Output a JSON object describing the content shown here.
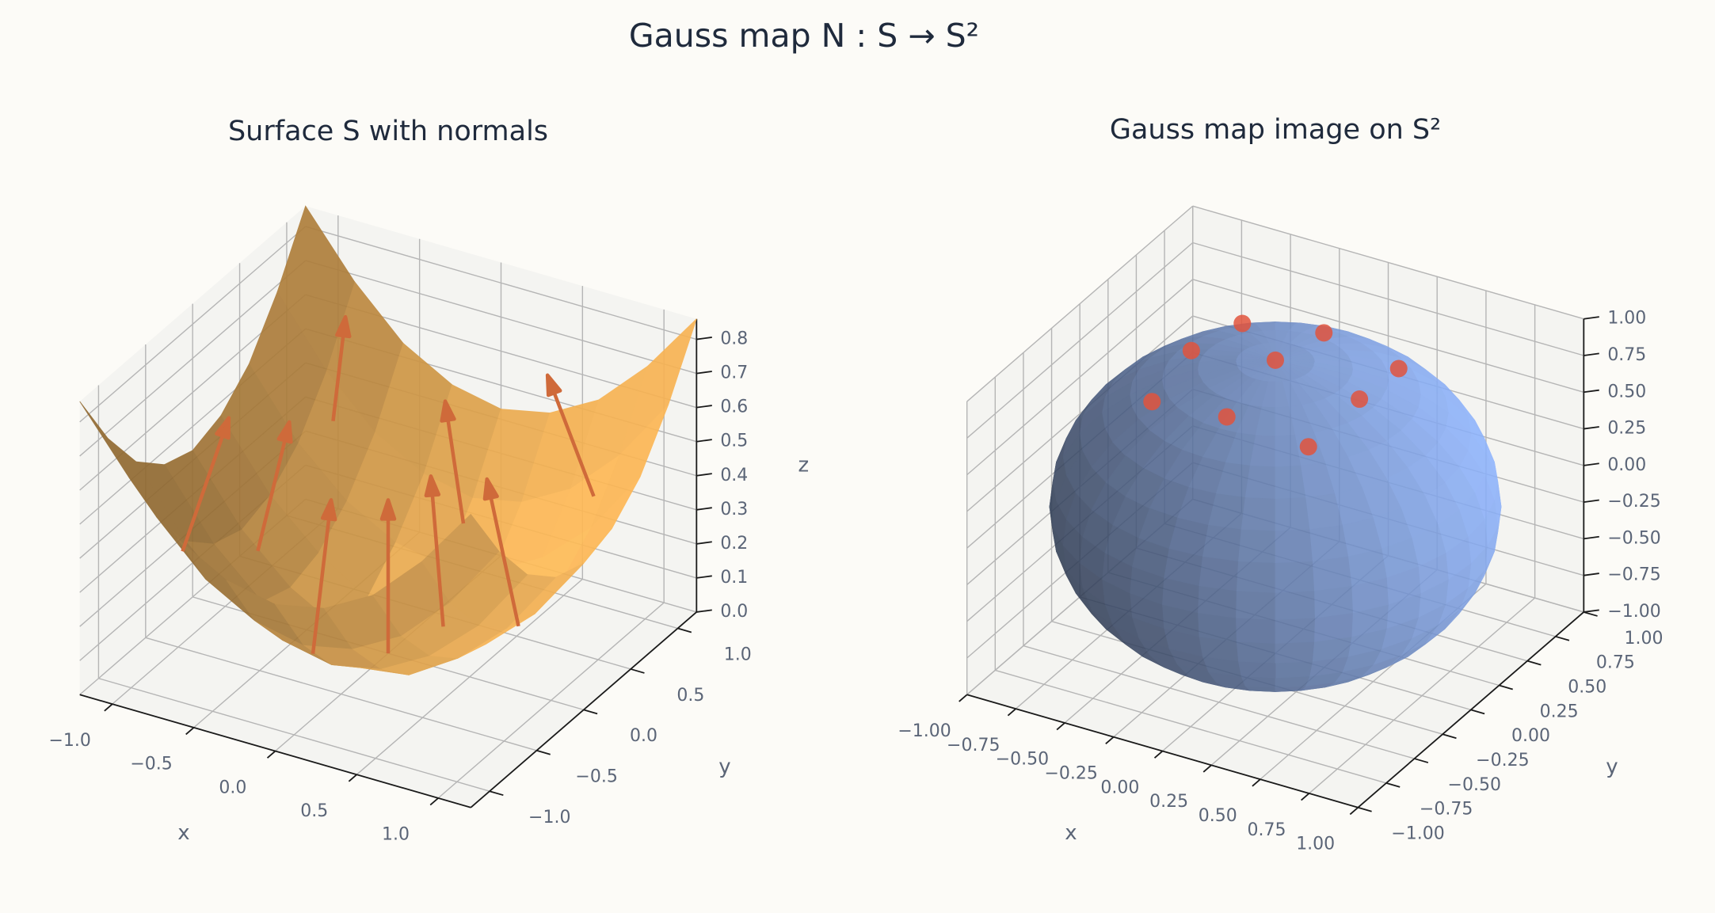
{
  "title": "Gauss map N : S → S²",
  "chart_data": [
    {
      "type": "surface3d",
      "title": "Surface S with normals",
      "xlabel": "x",
      "ylabel": "y",
      "zlabel": "z",
      "x": [
        -1.2,
        -0.9,
        -0.6,
        -0.3,
        0,
        0.3,
        0.6,
        0.9,
        1.2
      ],
      "y": [
        -1.2,
        -0.9,
        -0.6,
        -0.3,
        0,
        0.3,
        0.6,
        0.9,
        1.2
      ],
      "z": [
        [
          0.86,
          0.68,
          0.54,
          0.46,
          0.43,
          0.46,
          0.54,
          0.68,
          0.86
        ],
        [
          0.68,
          0.49,
          0.35,
          0.27,
          0.24,
          0.27,
          0.35,
          0.49,
          0.68
        ],
        [
          0.54,
          0.35,
          0.22,
          0.14,
          0.11,
          0.14,
          0.22,
          0.35,
          0.54
        ],
        [
          0.46,
          0.27,
          0.14,
          0.05,
          0.03,
          0.05,
          0.14,
          0.27,
          0.46
        ],
        [
          0.43,
          0.24,
          0.11,
          0.03,
          0,
          0.03,
          0.11,
          0.24,
          0.43
        ],
        [
          0.46,
          0.27,
          0.14,
          0.05,
          0.03,
          0.05,
          0.14,
          0.27,
          0.46
        ],
        [
          0.54,
          0.35,
          0.22,
          0.14,
          0.11,
          0.14,
          0.22,
          0.35,
          0.54
        ],
        [
          0.68,
          0.49,
          0.35,
          0.27,
          0.24,
          0.27,
          0.35,
          0.49,
          0.68
        ],
        [
          0.86,
          0.68,
          0.54,
          0.46,
          0.43,
          0.46,
          0.54,
          0.68,
          0.86
        ]
      ],
      "color": "#e9a84c",
      "normals": {
        "x": [
          -0.8,
          -0.8,
          -0.8,
          0,
          0,
          0,
          0.8,
          0.8,
          0.8
        ],
        "y": [
          -0.8,
          0,
          0.8,
          -0.8,
          0,
          0.8,
          -0.8,
          0,
          0.8
        ],
        "z": [
          0.38,
          0.19,
          0.38,
          0.19,
          0,
          0.19,
          0.38,
          0.19,
          0.38
        ],
        "u": [
          0.4,
          0.43,
          0.4,
          0,
          0,
          0,
          -0.4,
          -0.43,
          -0.4
        ],
        "v": [
          0.4,
          0,
          -0.4,
          0.43,
          0,
          -0.43,
          0.4,
          0,
          -0.4
        ],
        "w": [
          0.83,
          0.9,
          0.83,
          0.9,
          1,
          0.9,
          0.83,
          0.9,
          0.83
        ],
        "color": "#cf6a3a"
      },
      "xlim": [
        -1.2,
        1.2
      ],
      "ylim": [
        -1.2,
        1.2
      ],
      "zlim": [
        0,
        0.86
      ],
      "xticks": [
        {
          "value": -1,
          "label": "−1.0"
        },
        {
          "value": -0.5,
          "label": "−0.5"
        },
        {
          "value": 0,
          "label": "0.0"
        },
        0.5,
        {
          "value": 1,
          "label": "1.0"
        }
      ],
      "yticks": [
        {
          "value": -1,
          "label": "−1.0"
        },
        {
          "value": -0.5,
          "label": "−0.5"
        },
        {
          "value": 0,
          "label": "0.0"
        },
        0.5,
        {
          "value": 1,
          "label": "1.0"
        }
      ],
      "zticks": [
        {
          "value": 0,
          "label": "0.0"
        },
        0.1,
        0.2,
        0.3,
        0.4,
        0.5,
        0.6,
        0.7,
        0.8
      ]
    },
    {
      "type": "scatter3d",
      "title": "Gauss map image on S²",
      "xlabel": "x",
      "ylabel": "y",
      "x": [
        0.4,
        0.43,
        0.4,
        0,
        0,
        0,
        -0.4,
        -0.43,
        -0.4
      ],
      "y": [
        0.4,
        0,
        -0.4,
        0.43,
        0,
        -0.43,
        0.4,
        0,
        -0.4
      ],
      "z": [
        0.83,
        0.9,
        0.83,
        0.9,
        1,
        0.9,
        0.83,
        0.9,
        0.83
      ],
      "color": "#e0533d",
      "sphere_color": "#7fa2e6",
      "xlim": [
        -1,
        1
      ],
      "ylim": [
        -1,
        1
      ],
      "zlim": [
        -1,
        1
      ],
      "xticks": [
        {
          "value": -1,
          "label": "−1.00"
        },
        {
          "value": -0.75,
          "label": "−0.75"
        },
        {
          "value": -0.5,
          "label": "−0.50"
        },
        {
          "value": -0.25,
          "label": "−0.25"
        },
        {
          "value": 0,
          "label": "0.00"
        },
        0.25,
        {
          "value": 0.5,
          "label": "0.50"
        },
        0.75,
        {
          "value": 1,
          "label": "1.00"
        }
      ],
      "yticks": [
        {
          "value": -1,
          "label": "−1.00"
        },
        {
          "value": -0.75,
          "label": "−0.75"
        },
        {
          "value": -0.5,
          "label": "−0.50"
        },
        {
          "value": -0.25,
          "label": "−0.25"
        },
        {
          "value": 0,
          "label": "0.00"
        },
        0.25,
        {
          "value": 0.5,
          "label": "0.50"
        },
        0.75,
        {
          "value": 1,
          "label": "1.00"
        }
      ],
      "zticks": [
        {
          "value": -1,
          "label": "−1.00"
        },
        {
          "value": -0.75,
          "label": "−0.75"
        },
        {
          "value": -0.5,
          "label": "−0.50"
        },
        {
          "value": -0.25,
          "label": "−0.25"
        },
        {
          "value": 0,
          "label": "0.00"
        },
        0.25,
        {
          "value": 0.5,
          "label": "0.50"
        },
        0.75,
        {
          "value": 1,
          "label": "1.00"
        }
      ]
    }
  ]
}
